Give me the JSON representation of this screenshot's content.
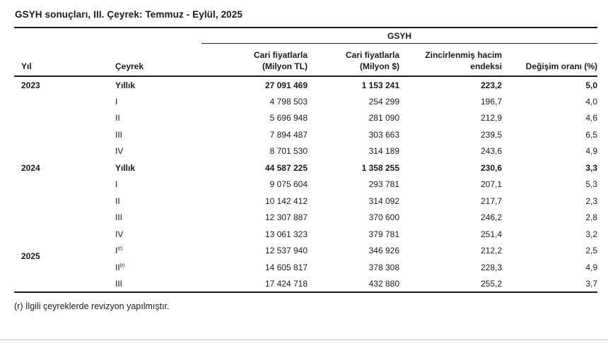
{
  "title": "GSYH sonuçları, III. Çeyrek: Temmuz - Eylül, 2025",
  "table": {
    "spanner": "GSYH",
    "columns": {
      "year": "Yıl",
      "quarter": "Çeyrek",
      "tl1": "Cari fiyatlarla",
      "tl2": "(Milyon TL)",
      "usd1": "Cari fiyatlarla",
      "usd2": "(Milyon $)",
      "idx1": "Zincirlenmiş hacim",
      "idx2": "endeksi",
      "chg": "Değişim oranı (%)"
    },
    "rows": [
      {
        "year": "2023",
        "quarter": "Yıllık",
        "sup": "",
        "tl": "27 091 469",
        "usd": "1 153 241",
        "index": "223,2",
        "change": "5,0",
        "bold": true,
        "year_low": false
      },
      {
        "year": "",
        "quarter": "I",
        "sup": "",
        "tl": "4 798 503",
        "usd": "254 299",
        "index": "196,7",
        "change": "4,0",
        "bold": false,
        "year_low": false
      },
      {
        "year": "",
        "quarter": "II",
        "sup": "",
        "tl": "5 696 948",
        "usd": "281 090",
        "index": "212,9",
        "change": "4,6",
        "bold": false,
        "year_low": false
      },
      {
        "year": "",
        "quarter": "III",
        "sup": "",
        "tl": "7 894 487",
        "usd": "303 663",
        "index": "239,5",
        "change": "6,5",
        "bold": false,
        "year_low": false
      },
      {
        "year": "",
        "quarter": "IV",
        "sup": "",
        "tl": "8 701 530",
        "usd": "314 189",
        "index": "243,6",
        "change": "4,9",
        "bold": false,
        "year_low": false
      },
      {
        "year": "2024",
        "quarter": "Yıllık",
        "sup": "",
        "tl": "44 587 225",
        "usd": "1 358 255",
        "index": "230,6",
        "change": "3,3",
        "bold": true,
        "year_low": false
      },
      {
        "year": "",
        "quarter": "I",
        "sup": "",
        "tl": "9 075 604",
        "usd": "293 781",
        "index": "207,1",
        "change": "5,3",
        "bold": false,
        "year_low": false
      },
      {
        "year": "",
        "quarter": "II",
        "sup": "",
        "tl": "10 142 412",
        "usd": "314 092",
        "index": "217,7",
        "change": "2,3",
        "bold": false,
        "year_low": false
      },
      {
        "year": "",
        "quarter": "III",
        "sup": "",
        "tl": "12 307 887",
        "usd": "370 600",
        "index": "246,2",
        "change": "2,8",
        "bold": false,
        "year_low": false
      },
      {
        "year": "",
        "quarter": "IV",
        "sup": "",
        "tl": "13 061 323",
        "usd": "379 781",
        "index": "251,4",
        "change": "3,2",
        "bold": false,
        "year_low": false
      },
      {
        "year": "2025",
        "quarter": "I",
        "sup": "(r)",
        "tl": "12 537 940",
        "usd": "346 926",
        "index": "212,2",
        "change": "2,5",
        "bold": false,
        "year_low": true
      },
      {
        "year": "",
        "quarter": "II",
        "sup": "(r)",
        "tl": "14 605 817",
        "usd": "378 308",
        "index": "228,3",
        "change": "4,9",
        "bold": false,
        "year_low": false
      },
      {
        "year": "",
        "quarter": "III",
        "sup": "",
        "tl": "17 424 718",
        "usd": "432 880",
        "index": "255,2",
        "change": "3,7",
        "bold": false,
        "year_low": false
      }
    ]
  },
  "footnote": "(r) İlgili çeyreklerde revizyon yapılmıştır."
}
